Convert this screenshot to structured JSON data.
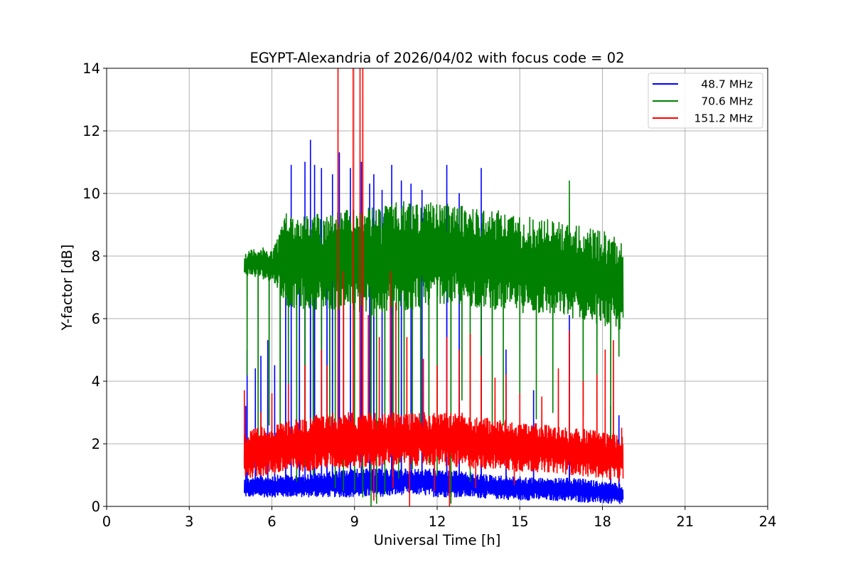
{
  "chart_data": {
    "type": "line",
    "title": "EGYPT-Alexandria of 2026/04/02 with focus code = 02",
    "xlabel": "Universal Time [h]",
    "ylabel": "Y-factor [dB]",
    "xlim": [
      0,
      24
    ],
    "ylim": [
      0,
      14
    ],
    "xticks": [
      0,
      3,
      6,
      9,
      12,
      15,
      18,
      21,
      24
    ],
    "yticks": [
      0,
      2,
      4,
      6,
      8,
      10,
      12,
      14
    ],
    "xtick_labels": [
      "0",
      "3",
      "6",
      "9",
      "12",
      "15",
      "18",
      "21",
      "24"
    ],
    "ytick_labels": [
      "0",
      "2",
      "4",
      "6",
      "8",
      "10",
      "12",
      "14"
    ],
    "grid": true,
    "legend_position": "top-right",
    "time_span": [
      5.0,
      18.75
    ],
    "series": [
      {
        "name": "48.7 MHz",
        "legend_label": "  48.7 MHz",
        "color": "#0000ff",
        "band": [
          [
            5.0,
            0.3,
            0.9
          ],
          [
            6.0,
            0.3,
            1.0
          ],
          [
            7.0,
            0.3,
            1.0
          ],
          [
            8.0,
            0.3,
            1.1
          ],
          [
            9.0,
            0.3,
            1.2
          ],
          [
            10.0,
            0.3,
            1.2
          ],
          [
            11.0,
            0.4,
            1.2
          ],
          [
            12.0,
            0.3,
            1.2
          ],
          [
            13.0,
            0.3,
            1.1
          ],
          [
            14.0,
            0.25,
            1.0
          ],
          [
            15.0,
            0.2,
            0.95
          ],
          [
            16.0,
            0.2,
            0.9
          ],
          [
            17.0,
            0.15,
            0.9
          ],
          [
            18.0,
            0.1,
            0.8
          ],
          [
            18.75,
            0.05,
            0.7
          ]
        ],
        "spikes": [
          [
            5.05,
            3.2
          ],
          [
            5.1,
            5.0
          ],
          [
            5.4,
            4.4
          ],
          [
            5.6,
            4.8
          ],
          [
            5.85,
            5.3
          ],
          [
            6.1,
            4.5
          ],
          [
            6.5,
            7.2
          ],
          [
            6.7,
            10.9
          ],
          [
            7.0,
            8.1
          ],
          [
            7.2,
            11.0
          ],
          [
            7.4,
            11.7
          ],
          [
            7.55,
            10.9
          ],
          [
            7.8,
            10.8
          ],
          [
            8.0,
            8.1
          ],
          [
            8.2,
            10.6
          ],
          [
            8.45,
            11.3
          ],
          [
            8.85,
            10.8
          ],
          [
            9.25,
            11.0
          ],
          [
            9.55,
            10.3
          ],
          [
            9.7,
            10.6
          ],
          [
            10.0,
            10.1
          ],
          [
            10.35,
            10.9
          ],
          [
            10.7,
            10.4
          ],
          [
            11.05,
            10.3
          ],
          [
            11.45,
            10.1
          ],
          [
            12.35,
            10.9
          ],
          [
            12.8,
            10.0
          ],
          [
            13.6,
            10.8
          ],
          [
            14.5,
            5.0
          ],
          [
            15.5,
            3.7
          ],
          [
            16.8,
            6.1
          ],
          [
            18.3,
            3.2
          ],
          [
            18.6,
            2.9
          ]
        ]
      },
      {
        "name": "70.6 MHz",
        "legend_label": "  70.6 MHz",
        "color": "#008000",
        "band": [
          [
            5.0,
            7.4,
            8.1
          ],
          [
            5.5,
            7.3,
            8.3
          ],
          [
            6.0,
            7.2,
            8.2
          ],
          [
            6.2,
            7.0,
            8.6
          ],
          [
            6.5,
            6.4,
            9.4
          ],
          [
            7.0,
            6.3,
            9.3
          ],
          [
            8.0,
            6.3,
            9.4
          ],
          [
            9.0,
            6.2,
            9.5
          ],
          [
            10.0,
            6.0,
            9.6
          ],
          [
            11.0,
            6.2,
            9.8
          ],
          [
            11.5,
            6.4,
            9.7
          ],
          [
            12.0,
            6.5,
            9.7
          ],
          [
            13.0,
            6.4,
            9.6
          ],
          [
            14.0,
            6.3,
            9.5
          ],
          [
            15.0,
            6.2,
            9.3
          ],
          [
            16.0,
            6.1,
            9.2
          ],
          [
            17.0,
            6.0,
            9.0
          ],
          [
            18.0,
            5.8,
            8.8
          ],
          [
            18.75,
            5.5,
            8.6
          ]
        ],
        "dips": [
          [
            5.1,
            4.2
          ],
          [
            5.5,
            2.2
          ],
          [
            5.9,
            2.6
          ],
          [
            6.3,
            1.2
          ],
          [
            6.6,
            3.5
          ],
          [
            6.9,
            0.8
          ],
          [
            7.2,
            1.3
          ],
          [
            7.5,
            1.0
          ],
          [
            7.8,
            1.6
          ],
          [
            8.1,
            1.9
          ],
          [
            8.3,
            0.6
          ],
          [
            8.6,
            0.5
          ],
          [
            9.0,
            0.5
          ],
          [
            9.3,
            0.3
          ],
          [
            9.6,
            0.0
          ],
          [
            9.8,
            0.1
          ],
          [
            10.1,
            0.4
          ],
          [
            10.4,
            1.2
          ],
          [
            10.6,
            0.9
          ],
          [
            10.8,
            1.5
          ],
          [
            11.1,
            1.2
          ],
          [
            11.4,
            2.6
          ],
          [
            11.7,
            1.4
          ],
          [
            12.0,
            1.0
          ],
          [
            12.5,
            0.1
          ],
          [
            12.9,
            3.4
          ],
          [
            13.2,
            0.8
          ],
          [
            13.6,
            2.5
          ],
          [
            14.0,
            1.9
          ],
          [
            14.4,
            2.6
          ],
          [
            15.0,
            3.6
          ],
          [
            15.6,
            2.8
          ],
          [
            16.2,
            3.0
          ],
          [
            17.3,
            2.9
          ],
          [
            17.8,
            3.0
          ],
          [
            18.3,
            1.7
          ],
          [
            18.6,
            4.8
          ]
        ],
        "peaks": [
          [
            16.8,
            10.4
          ]
        ]
      },
      {
        "name": "151.2 MHz",
        "legend_label": "151.2 MHz",
        "color": "#ff0000",
        "band": [
          [
            5.0,
            0.9,
            2.4
          ],
          [
            6.0,
            1.0,
            2.6
          ],
          [
            7.0,
            1.1,
            2.8
          ],
          [
            8.0,
            1.2,
            3.0
          ],
          [
            9.0,
            1.2,
            3.0
          ],
          [
            10.0,
            1.3,
            3.0
          ],
          [
            11.0,
            1.3,
            3.0
          ],
          [
            12.0,
            1.3,
            3.0
          ],
          [
            13.0,
            1.2,
            3.0
          ],
          [
            14.0,
            1.2,
            2.8
          ],
          [
            15.0,
            1.1,
            2.7
          ],
          [
            16.0,
            1.1,
            2.6
          ],
          [
            17.0,
            1.0,
            2.5
          ],
          [
            18.0,
            0.9,
            2.4
          ],
          [
            18.75,
            0.8,
            2.3
          ]
        ],
        "spikes": [
          [
            5.0,
            3.7
          ],
          [
            5.6,
            3.0
          ],
          [
            6.0,
            3.6
          ],
          [
            6.6,
            3.9
          ],
          [
            7.2,
            4.5
          ],
          [
            7.8,
            5.0
          ],
          [
            8.0,
            4.5
          ],
          [
            8.4,
            14.0
          ],
          [
            8.6,
            7.5
          ],
          [
            8.95,
            14.0
          ],
          [
            9.2,
            14.0
          ],
          [
            9.3,
            14.0
          ],
          [
            9.5,
            6.1
          ],
          [
            9.9,
            5.4
          ],
          [
            10.3,
            7.5
          ],
          [
            10.5,
            6.5
          ],
          [
            10.9,
            5.4
          ],
          [
            11.5,
            4.7
          ],
          [
            12.0,
            4.5
          ],
          [
            12.35,
            5.4
          ],
          [
            12.8,
            5.0
          ],
          [
            13.2,
            5.5
          ],
          [
            13.6,
            4.8
          ],
          [
            14.1,
            4.1
          ],
          [
            14.5,
            4.2
          ],
          [
            15.0,
            3.6
          ],
          [
            15.8,
            3.5
          ],
          [
            16.4,
            4.4
          ],
          [
            16.8,
            5.6
          ],
          [
            17.3,
            4.0
          ],
          [
            17.8,
            4.2
          ],
          [
            18.1,
            5.0
          ],
          [
            18.4,
            5.3
          ],
          [
            18.7,
            2.5
          ]
        ],
        "drops": [
          [
            9.7,
            0.2
          ],
          [
            10.4,
            0.6
          ],
          [
            11.0,
            0.0
          ],
          [
            11.9,
            0.5
          ],
          [
            12.45,
            0.0
          ],
          [
            13.4,
            0.6
          ],
          [
            14.8,
            0.7
          ]
        ]
      }
    ]
  }
}
